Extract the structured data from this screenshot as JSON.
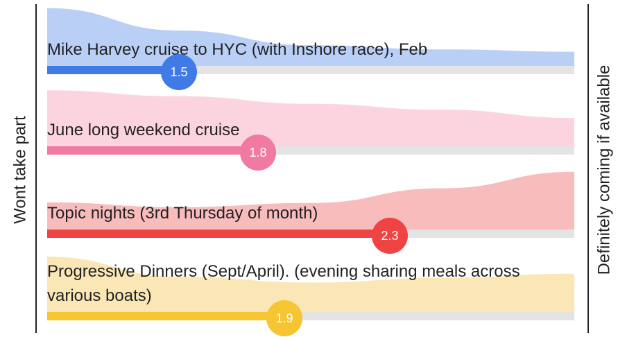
{
  "chart_data": {
    "type": "bar",
    "left_label": "Wont take part",
    "right_label": "Definitely coming if available",
    "categories": [
      "Mike Harvey cruise to HYC (with Inshore race), Feb",
      "June long weekend cruise",
      "Topic nights (3rd Thursday of month)",
      "Progressive Dinners (Sept/April). (evening sharing meals across various boats)"
    ],
    "values": [
      1.5,
      1.8,
      2.3,
      1.9
    ],
    "colors": [
      "#3f7ae6",
      "#f07aa2",
      "#f04343",
      "#f7c432"
    ],
    "area_colors": [
      "#b9cff6",
      "#fbd4df",
      "#f9bcbc",
      "#fbe7b6"
    ],
    "xlim": [
      1,
      3
    ],
    "distribution_x": [
      1,
      1.5,
      2,
      2.5,
      3
    ],
    "distributions": [
      [
        98,
        60,
        35,
        28,
        24
      ],
      [
        95,
        85,
        72,
        62,
        48
      ],
      [
        46,
        38,
        45,
        70,
        98
      ],
      [
        94,
        60,
        50,
        58,
        65
      ]
    ]
  }
}
